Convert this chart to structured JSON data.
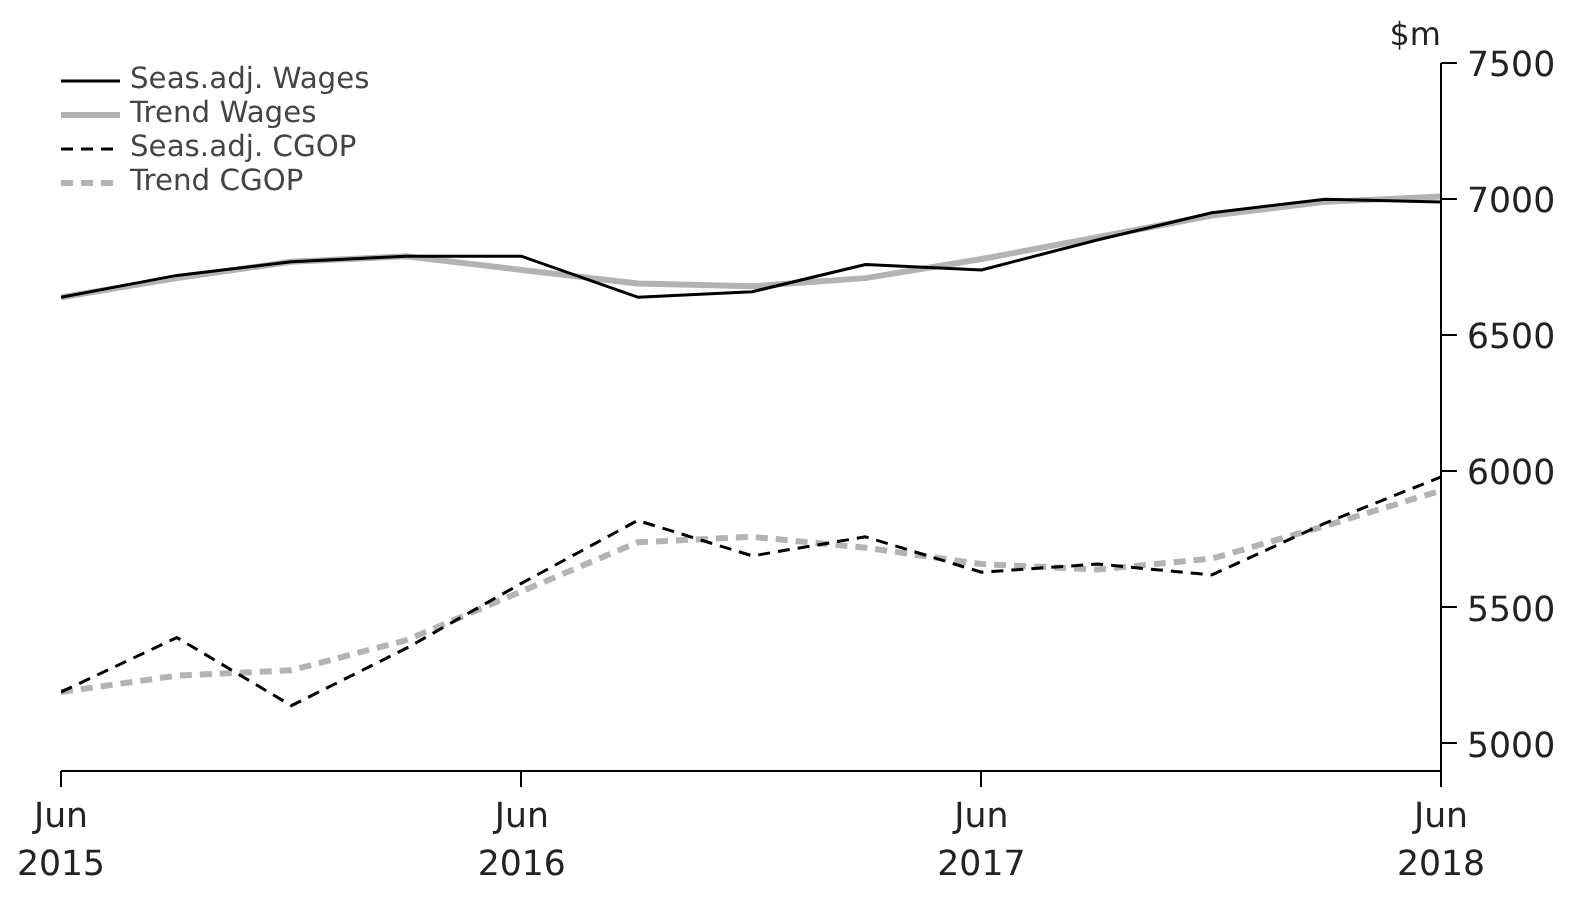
{
  "chart_data": {
    "type": "line",
    "ylabel": "$m",
    "x": [
      "2015-06",
      "2015-09",
      "2015-12",
      "2016-03",
      "2016-06",
      "2016-09",
      "2016-12",
      "2017-03",
      "2017-06",
      "2017-09",
      "2017-12",
      "2018-03",
      "2018-06"
    ],
    "series": [
      {
        "name": "Seas.adj. Wages",
        "color": "#000000",
        "line_style": "solid",
        "values": [
          6640,
          6720,
          6770,
          6790,
          6790,
          6640,
          6660,
          6760,
          6740,
          6850,
          6950,
          7000,
          6990
        ]
      },
      {
        "name": "Trend Wages",
        "color": "#b3b3b3",
        "line_style": "solid",
        "values": [
          6640,
          6710,
          6770,
          6790,
          6740,
          6690,
          6680,
          6710,
          6780,
          6860,
          6940,
          6990,
          7010
        ]
      },
      {
        "name": "Seas.adj. CGOP",
        "color": "#000000",
        "line_style": "dashed",
        "values": [
          5190,
          5390,
          5140,
          5350,
          5590,
          5820,
          5690,
          5760,
          5630,
          5660,
          5620,
          5810,
          5980
        ]
      },
      {
        "name": "Trend CGOP",
        "color": "#b3b3b3",
        "line_style": "dashed",
        "values": [
          5190,
          5250,
          5270,
          5380,
          5560,
          5740,
          5760,
          5720,
          5660,
          5640,
          5680,
          5800,
          5930
        ]
      }
    ],
    "xlim": [
      "2015-06",
      "2018-06"
    ],
    "xticks": [
      {
        "value": "2015-06",
        "label": "Jun\n2015"
      },
      {
        "value": "2016-06",
        "label": "Jun\n2016"
      },
      {
        "value": "2017-06",
        "label": "Jun\n2017"
      },
      {
        "value": "2018-06",
        "label": "Jun\n2018"
      }
    ],
    "ylim": [
      4900,
      7500
    ],
    "yticks": [
      5000,
      5500,
      6000,
      6500,
      7000,
      7500
    ],
    "grid": false,
    "legend": "top left",
    "marker": "none"
  }
}
